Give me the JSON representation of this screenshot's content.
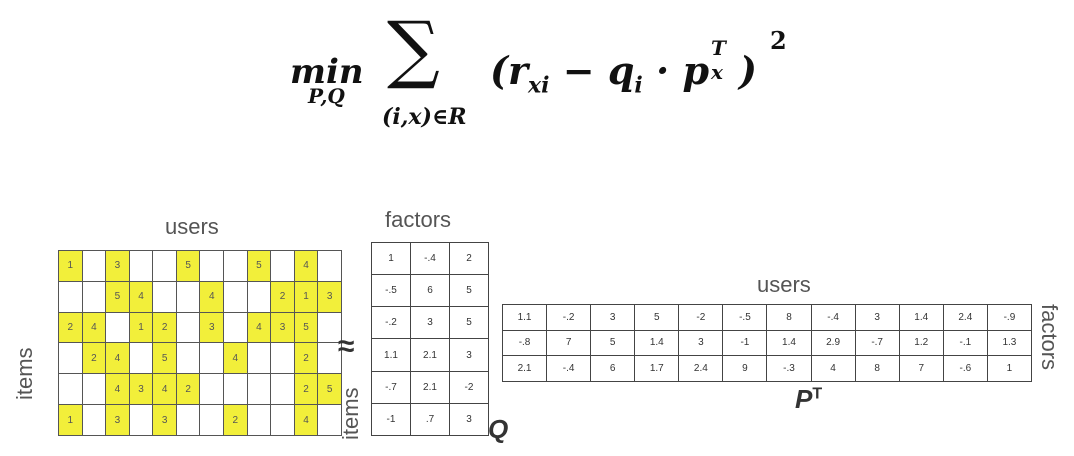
{
  "formula": {
    "min": "min",
    "min_sub": "P,Q",
    "sigma": "∑",
    "sigma_sub": "(i,x)∈R",
    "lparen": "(",
    "r": "r",
    "r_sub": "xi",
    "minus": " − ",
    "q": "q",
    "q_sub": "i",
    "dot": " · ",
    "p": "p",
    "p_sup": "T",
    "p_sub": "x",
    "rparen": ")",
    "power": "2"
  },
  "labels": {
    "users_ratings": "users",
    "items_ratings": "items",
    "approx": "≈",
    "factors_q": "factors",
    "items_q": "items",
    "q_name": "Q",
    "users_pt": "users",
    "factors_pt": "factors",
    "pt_name": "P",
    "pt_sup": "T"
  },
  "colors": {
    "filled": "#f2ef3a",
    "grid": "#444444"
  },
  "ratings": [
    [
      "1",
      "",
      "3",
      "",
      "",
      "5",
      "",
      "",
      "5",
      "",
      "4",
      ""
    ],
    [
      "",
      "",
      "5",
      "4",
      "",
      "",
      "4",
      "",
      "",
      "2",
      "1",
      "3"
    ],
    [
      "2",
      "4",
      "",
      "1",
      "2",
      "",
      "3",
      "",
      "4",
      "3",
      "5",
      ""
    ],
    [
      "",
      "2",
      "4",
      "",
      "5",
      "",
      "",
      "4",
      "",
      "",
      "2",
      ""
    ],
    [
      "",
      "",
      "4",
      "3",
      "4",
      "2",
      "",
      "",
      "",
      "",
      "2",
      "5"
    ],
    [
      "1",
      "",
      "3",
      "",
      "3",
      "",
      "",
      "2",
      "",
      "",
      "4",
      ""
    ]
  ],
  "Q": [
    [
      "1",
      "-.4",
      "2"
    ],
    [
      "-.5",
      "6",
      "5"
    ],
    [
      "-.2",
      "3",
      "5"
    ],
    [
      "1.1",
      "2.1",
      "3"
    ],
    [
      "-.7",
      "2.1",
      "-2"
    ],
    [
      "-1",
      ".7",
      "3"
    ]
  ],
  "PT": [
    [
      "1.1",
      "-.2",
      "3",
      "5",
      "-2",
      "-.5",
      "8",
      "-.4",
      "3",
      "1.4",
      "2.4",
      "-.9"
    ],
    [
      "-.8",
      "7",
      "5",
      "1.4",
      "3",
      "-1",
      "1.4",
      "2.9",
      "-.7",
      "1.2",
      "-.1",
      "1.3"
    ],
    [
      "2.1",
      "-.4",
      "6",
      "1.7",
      "2.4",
      "9",
      "-.3",
      "4",
      "8",
      "7",
      "-.6",
      "1"
    ]
  ]
}
